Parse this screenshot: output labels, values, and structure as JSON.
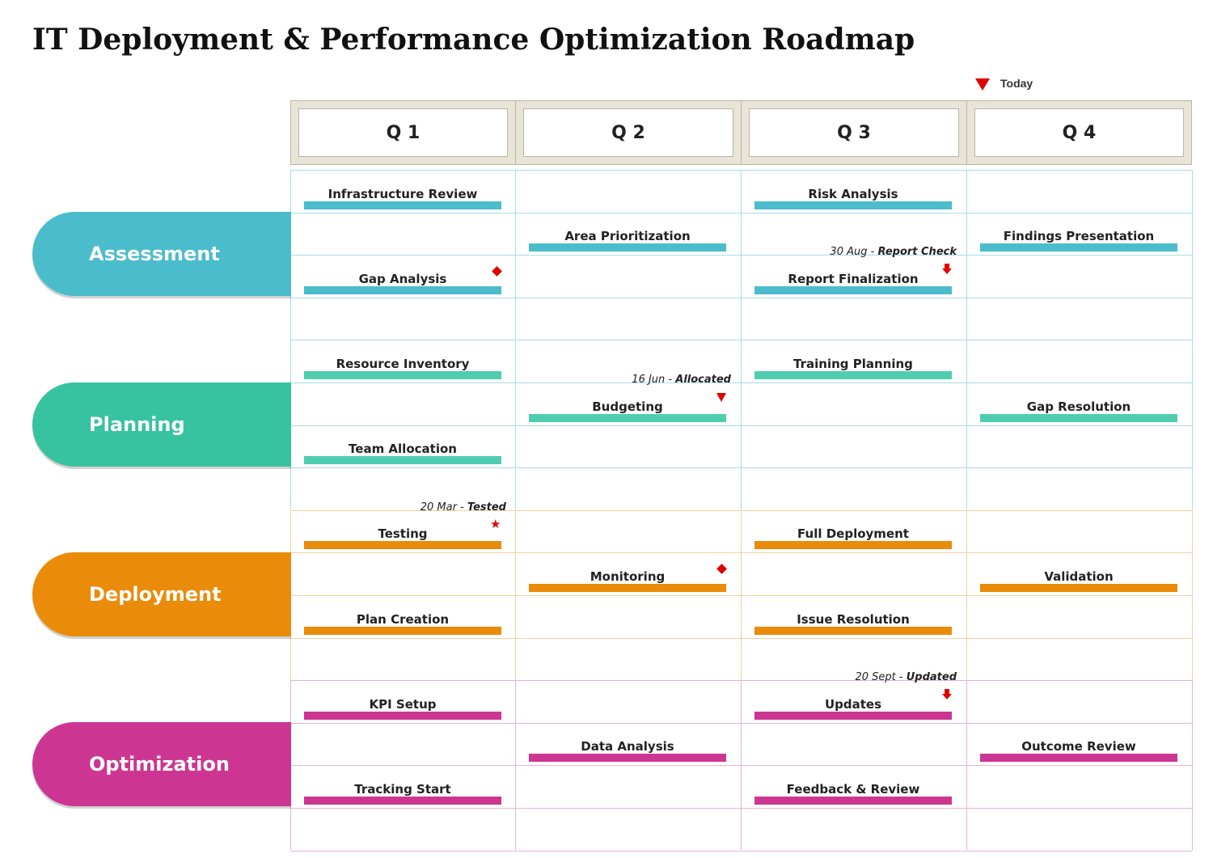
{
  "title": "IT Deployment & Performance Optimization Roadmap",
  "legend": {
    "label": "Today",
    "icon": "red-down-triangle",
    "color": "#e00000"
  },
  "quarters": [
    "Q 1",
    "Q 2",
    "Q 3",
    "Q 4"
  ],
  "phases": [
    {
      "name": "Assessment",
      "color": "#4bbccc",
      "bar_color": "#4bbccc",
      "grid_color": "#a9dde6",
      "tasks": [
        {
          "label": "Infrastructure Review",
          "quarter": 1,
          "row": 1
        },
        {
          "label": "Risk Analysis",
          "quarter": 3,
          "row": 1
        },
        {
          "label": "Area Prioritization",
          "quarter": 2,
          "row": 2
        },
        {
          "label": "Findings Presentation",
          "quarter": 4,
          "row": 2
        },
        {
          "label": "Gap Analysis",
          "quarter": 1,
          "row": 3,
          "marker": "diamond"
        },
        {
          "label": "Report Finalization",
          "quarter": 3,
          "row": 3,
          "marker": "arrow",
          "note_date": "30 Aug",
          "note_text": "Report Check"
        }
      ]
    },
    {
      "name": "Planning",
      "color": "#37c2a0",
      "bar_color": "#4fcdb0",
      "grid_color": "#a9dde6",
      "tasks": [
        {
          "label": "Resource Inventory",
          "quarter": 1,
          "row": 1
        },
        {
          "label": "Training Planning",
          "quarter": 3,
          "row": 1
        },
        {
          "label": "Budgeting",
          "quarter": 2,
          "row": 2,
          "marker": "triangle",
          "note_date": "16 Jun",
          "note_text": "Allocated"
        },
        {
          "label": "Gap Resolution",
          "quarter": 4,
          "row": 2
        },
        {
          "label": "Team Allocation",
          "quarter": 1,
          "row": 3
        }
      ]
    },
    {
      "name": "Deployment",
      "color": "#ea8b0a",
      "bar_color": "#ea8b0a",
      "grid_color": "#f5cfa0",
      "tasks": [
        {
          "label": "Testing",
          "quarter": 1,
          "row": 1,
          "marker": "star",
          "note_date": "20 Mar",
          "note_text": "Tested"
        },
        {
          "label": "Full Deployment",
          "quarter": 3,
          "row": 1
        },
        {
          "label": "Monitoring",
          "quarter": 2,
          "row": 2,
          "marker": "diamond"
        },
        {
          "label": "Validation",
          "quarter": 4,
          "row": 2
        },
        {
          "label": "Plan Creation",
          "quarter": 1,
          "row": 3
        },
        {
          "label": "Issue Resolution",
          "quarter": 3,
          "row": 3
        }
      ]
    },
    {
      "name": "Optimization",
      "color": "#cc3692",
      "bar_color": "#cc3692",
      "grid_color": "#e9b3d3",
      "tasks": [
        {
          "label": "KPI Setup",
          "quarter": 1,
          "row": 1
        },
        {
          "label": "Updates",
          "quarter": 3,
          "row": 1,
          "marker": "arrow",
          "note_date": "20 Sept",
          "note_text": "Updated"
        },
        {
          "label": "Data Analysis",
          "quarter": 2,
          "row": 2
        },
        {
          "label": "Outcome Review",
          "quarter": 4,
          "row": 2
        },
        {
          "label": "Tracking Start",
          "quarter": 1,
          "row": 3
        },
        {
          "label": "Feedback & Review",
          "quarter": 3,
          "row": 3
        }
      ]
    }
  ]
}
